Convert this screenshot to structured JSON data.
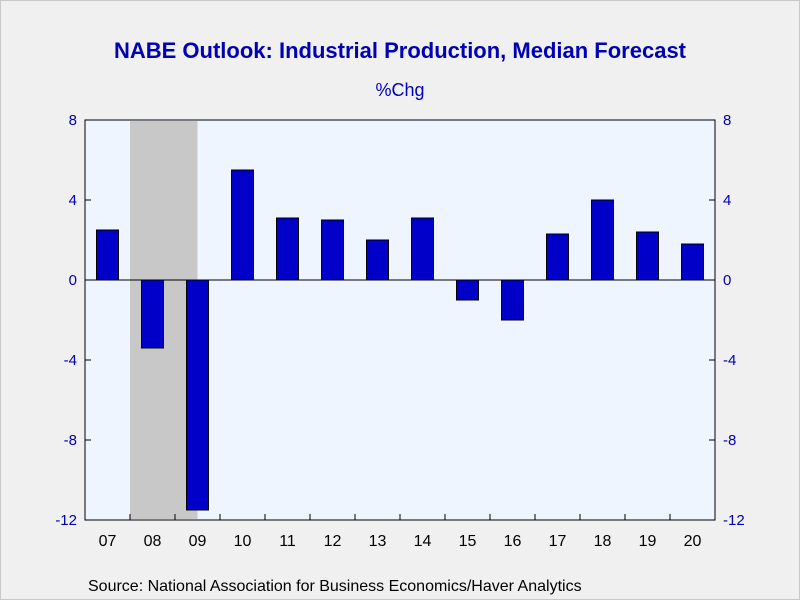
{
  "colors": {
    "bar": "#0000c8",
    "bar_outline": "#000000",
    "axis_text": "#0000b4",
    "plot_bg": "#eef5ff",
    "recession": "#c8c8c8",
    "page_bg": "#f0f0f0"
  },
  "chart_data": {
    "type": "bar",
    "title": "NABE Outlook: Industrial Production, Median Forecast",
    "subtitle": "%Chg",
    "source": "Source:  National Association for Business Economics/Haver Analytics",
    "categories": [
      "07",
      "08",
      "09",
      "10",
      "11",
      "12",
      "13",
      "14",
      "15",
      "16",
      "17",
      "18",
      "19",
      "20"
    ],
    "values": [
      2.5,
      -3.4,
      -11.5,
      5.5,
      3.1,
      3.0,
      2.0,
      3.1,
      -1.0,
      -2.0,
      2.3,
      4.0,
      2.4,
      1.8
    ],
    "ylim": [
      -12,
      8
    ],
    "yticks": [
      "8",
      "4",
      "0",
      "-4",
      "-8",
      "-12"
    ],
    "ytick_values": [
      8,
      4,
      0,
      -4,
      -8,
      -12
    ],
    "recession_shading": {
      "from": "08",
      "to": "09"
    },
    "grid": false
  }
}
